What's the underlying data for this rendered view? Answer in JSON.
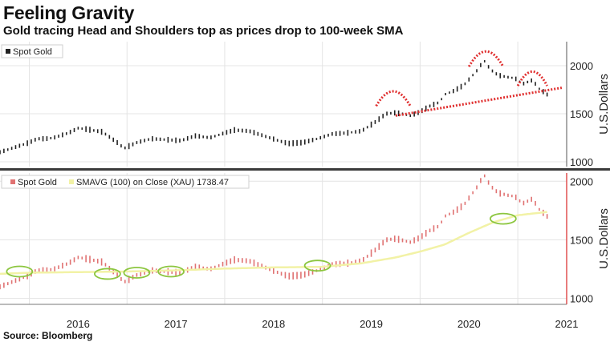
{
  "title": "Feeling Gravity",
  "subtitle": "Gold tracing Head and Shoulders top as prices drop to 100-week SMA",
  "source": "Source: Bloomberg",
  "colors": {
    "top_price": "#222222",
    "bottom_price": "#e07272",
    "sma": "#f2f2a6",
    "pattern_dots": "#e03030",
    "touch_circles": "#8cc63f",
    "divider": "#3a3a3a",
    "axis_red": "#e05050"
  },
  "chart_data": [
    {
      "type": "line",
      "title": "",
      "legend": [
        "Spot Gold"
      ],
      "legend_position": "top-left",
      "ylabel": "U.S.Dollars",
      "ylim": [
        950,
        2250
      ],
      "y_ticks": [
        1000,
        1500,
        2000
      ],
      "x_ticks": [
        "2016",
        "2017",
        "2018",
        "2019",
        "2020",
        "2021"
      ],
      "grid": true,
      "series": [
        {
          "name": "Spot Gold",
          "x": [
            2015.7,
            2015.85,
            2016.0,
            2016.08,
            2016.17,
            2016.25,
            2016.4,
            2016.5,
            2016.58,
            2016.75,
            2016.9,
            2016.97,
            2017.1,
            2017.25,
            2017.4,
            2017.55,
            2017.7,
            2017.85,
            2018.0,
            2018.1,
            2018.25,
            2018.4,
            2018.55,
            2018.65,
            2018.8,
            2018.95,
            2019.1,
            2019.25,
            2019.4,
            2019.55,
            2019.65,
            2019.75,
            2019.9,
            2020.0,
            2020.1,
            2020.2,
            2020.25,
            2020.35,
            2020.45,
            2020.6,
            2020.65,
            2020.72,
            2020.8,
            2020.9,
            2020.97,
            2021.05,
            2021.15,
            2021.22,
            2021.3
          ],
          "values": [
            1100,
            1150,
            1200,
            1240,
            1240,
            1250,
            1300,
            1350,
            1340,
            1310,
            1200,
            1140,
            1200,
            1240,
            1230,
            1220,
            1270,
            1250,
            1300,
            1330,
            1320,
            1270,
            1220,
            1190,
            1200,
            1240,
            1290,
            1300,
            1320,
            1420,
            1500,
            1510,
            1480,
            1520,
            1580,
            1620,
            1700,
            1740,
            1800,
            1970,
            2060,
            1960,
            1900,
            1880,
            1870,
            1810,
            1850,
            1760,
            1700
          ]
        }
      ],
      "annotations": [
        "head-and-shoulders arcs",
        "neckline"
      ]
    },
    {
      "type": "line",
      "title": "",
      "legend": [
        "Spot Gold",
        "SMAVG (100)  on Close (XAU) 1738.47"
      ],
      "legend_position": "top-left",
      "ylabel": "U.S.Dollars",
      "ylim": [
        950,
        2070
      ],
      "y_ticks": [
        1000,
        1500,
        2000
      ],
      "x_ticks": [
        "2016",
        "2017",
        "2018",
        "2019",
        "2020",
        "2021"
      ],
      "grid": true,
      "series": [
        {
          "name": "Spot Gold",
          "x": [
            2015.7,
            2015.85,
            2016.0,
            2016.08,
            2016.17,
            2016.25,
            2016.4,
            2016.5,
            2016.58,
            2016.75,
            2016.9,
            2016.97,
            2017.1,
            2017.25,
            2017.4,
            2017.55,
            2017.7,
            2017.85,
            2018.0,
            2018.1,
            2018.25,
            2018.4,
            2018.55,
            2018.65,
            2018.8,
            2018.95,
            2019.1,
            2019.25,
            2019.4,
            2019.55,
            2019.65,
            2019.75,
            2019.9,
            2020.0,
            2020.1,
            2020.2,
            2020.25,
            2020.35,
            2020.45,
            2020.6,
            2020.65,
            2020.72,
            2020.8,
            2020.9,
            2020.97,
            2021.05,
            2021.15,
            2021.22,
            2021.3
          ],
          "values": [
            1100,
            1150,
            1200,
            1240,
            1240,
            1250,
            1300,
            1350,
            1340,
            1310,
            1200,
            1140,
            1200,
            1240,
            1230,
            1220,
            1270,
            1250,
            1300,
            1330,
            1320,
            1270,
            1220,
            1190,
            1200,
            1240,
            1290,
            1300,
            1320,
            1420,
            1500,
            1510,
            1480,
            1520,
            1580,
            1620,
            1700,
            1740,
            1800,
            1970,
            2060,
            1960,
            1900,
            1880,
            1870,
            1810,
            1850,
            1760,
            1700
          ]
        },
        {
          "name": "SMAVG (100)  on Close (XAU) 1738.47",
          "x": [
            2015.7,
            2016.0,
            2016.5,
            2017.0,
            2017.5,
            2018.0,
            2018.5,
            2019.0,
            2019.4,
            2019.75,
            2020.0,
            2020.25,
            2020.5,
            2020.75,
            2021.0,
            2021.3
          ],
          "values": [
            1210,
            1220,
            1225,
            1230,
            1240,
            1255,
            1265,
            1270,
            1300,
            1350,
            1400,
            1460,
            1560,
            1650,
            1710,
            1738
          ]
        }
      ],
      "annotations": [
        "SMA touch circles"
      ]
    }
  ]
}
